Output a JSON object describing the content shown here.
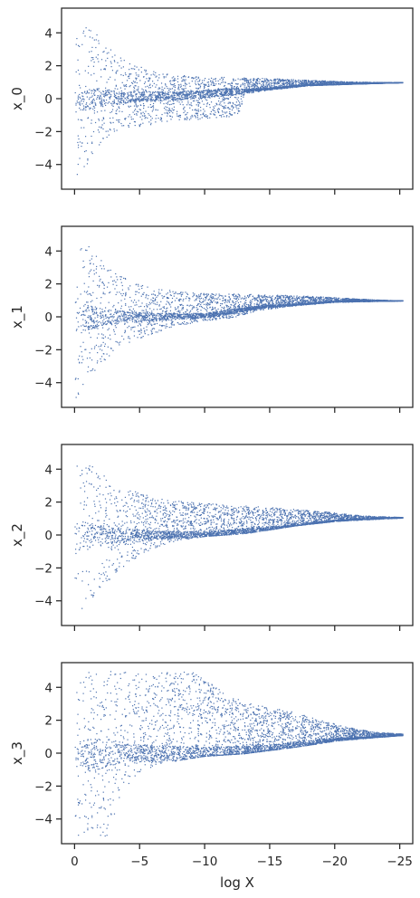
{
  "chart_data": {
    "type": "scatter",
    "panels_share_x": true,
    "marker_color": "#4c72b0",
    "marker": "tiny point",
    "xlabel": "log X",
    "x_axis_inverted": true,
    "xlim": [
      1,
      -26
    ],
    "xticks": [
      0,
      -5,
      -10,
      -15,
      -20,
      -25
    ],
    "xtick_labels": [
      "0",
      "−5",
      "−10",
      "−15",
      "−20",
      "−25"
    ],
    "ylim": [
      -5.5,
      5.5
    ],
    "yticks": [
      4,
      2,
      0,
      -2,
      -4
    ],
    "ytick_labels": [
      "4",
      "2",
      "0",
      "−2",
      "−4"
    ],
    "grid": false,
    "panels": [
      {
        "ylabel": "x_0",
        "x_range": [
          0,
          -25
        ],
        "upper_envelope": [
          [
            0,
            5.0
          ],
          [
            -1,
            4.6
          ],
          [
            -2,
            3.6
          ],
          [
            -3,
            2.8
          ],
          [
            -4,
            2.3
          ],
          [
            -6,
            1.7
          ],
          [
            -8,
            1.45
          ],
          [
            -10,
            1.35
          ],
          [
            -13,
            1.3
          ],
          [
            -15,
            1.25
          ],
          [
            -18,
            1.15
          ],
          [
            -21,
            1.05
          ],
          [
            -25,
            1.0
          ]
        ],
        "lower_envelope": [
          [
            0,
            -5.0
          ],
          [
            -1,
            -4.0
          ],
          [
            -2,
            -2.6
          ],
          [
            -3,
            -2.0
          ],
          [
            -4,
            -1.75
          ],
          [
            -6,
            -1.55
          ],
          [
            -8,
            -1.35
          ],
          [
            -10,
            -1.2
          ],
          [
            -12,
            -1.05
          ],
          [
            -12.7,
            -0.8
          ],
          [
            -13,
            0.3
          ],
          [
            -15,
            0.55
          ],
          [
            -18,
            0.8
          ],
          [
            -21,
            0.9
          ],
          [
            -25,
            1.0
          ]
        ],
        "dense_curve": [
          [
            0,
            0
          ],
          [
            -3,
            0.1
          ],
          [
            -8,
            0.2
          ],
          [
            -13,
            0.5
          ],
          [
            -18,
            0.85
          ],
          [
            -25,
            1.0
          ]
        ]
      },
      {
        "ylabel": "x_1",
        "x_range": [
          0,
          -25
        ],
        "upper_envelope": [
          [
            0,
            5.0
          ],
          [
            -1,
            4.4
          ],
          [
            -2,
            3.5
          ],
          [
            -3,
            2.8
          ],
          [
            -4,
            2.3
          ],
          [
            -6,
            1.8
          ],
          [
            -8,
            1.55
          ],
          [
            -10,
            1.45
          ],
          [
            -13,
            1.4
          ],
          [
            -16,
            1.35
          ],
          [
            -19,
            1.25
          ],
          [
            -22,
            1.1
          ],
          [
            -25,
            1.0
          ]
        ],
        "lower_envelope": [
          [
            0,
            -5.0
          ],
          [
            -1,
            -3.9
          ],
          [
            -2,
            -2.8
          ],
          [
            -3,
            -2.1
          ],
          [
            -4,
            -1.6
          ],
          [
            -6,
            -1.0
          ],
          [
            -8,
            -0.5
          ],
          [
            -10,
            -0.2
          ],
          [
            -12,
            -0.05
          ],
          [
            -13,
            0.15
          ],
          [
            -14,
            0.4
          ],
          [
            -17,
            0.7
          ],
          [
            -20,
            0.9
          ],
          [
            -25,
            1.0
          ]
        ],
        "dense_curve": [
          [
            0,
            0
          ],
          [
            -5,
            0
          ],
          [
            -10,
            0.1
          ],
          [
            -14,
            0.6
          ],
          [
            -20,
            0.95
          ],
          [
            -25,
            1.0
          ]
        ]
      },
      {
        "ylabel": "x_2",
        "x_range": [
          0,
          -25
        ],
        "upper_envelope": [
          [
            0,
            5.0
          ],
          [
            -1,
            4.5
          ],
          [
            -2,
            3.8
          ],
          [
            -3,
            3.2
          ],
          [
            -4,
            2.8
          ],
          [
            -6,
            2.35
          ],
          [
            -8,
            2.1
          ],
          [
            -10,
            1.95
          ],
          [
            -13,
            1.8
          ],
          [
            -16,
            1.65
          ],
          [
            -19,
            1.45
          ],
          [
            -22,
            1.2
          ],
          [
            -25,
            1.1
          ]
        ],
        "lower_envelope": [
          [
            0,
            -5.0
          ],
          [
            -1,
            -4.2
          ],
          [
            -2,
            -3.2
          ],
          [
            -3,
            -2.4
          ],
          [
            -4,
            -1.7
          ],
          [
            -5,
            -1.2
          ],
          [
            -6,
            -0.8
          ],
          [
            -8,
            -0.3
          ],
          [
            -10,
            -0.05
          ],
          [
            -13,
            0.1
          ],
          [
            -15,
            0.35
          ],
          [
            -17,
            0.6
          ],
          [
            -20,
            0.85
          ],
          [
            -25,
            1.05
          ]
        ],
        "dense_curve": [
          [
            0,
            0
          ],
          [
            -5,
            0
          ],
          [
            -10,
            0.05
          ],
          [
            -15,
            0.4
          ],
          [
            -20,
            0.9
          ],
          [
            -25,
            1.1
          ]
        ]
      },
      {
        "ylabel": "x_3",
        "x_range": [
          0,
          -25
        ],
        "upper_envelope": [
          [
            0,
            5.0
          ],
          [
            -3,
            5.0
          ],
          [
            -6,
            5.0
          ],
          [
            -9,
            5.0
          ],
          [
            -11,
            4.0
          ],
          [
            -13,
            3.1
          ],
          [
            -15,
            2.8
          ],
          [
            -17,
            2.5
          ],
          [
            -19,
            2.0
          ],
          [
            -21,
            1.6
          ],
          [
            -23,
            1.3
          ],
          [
            -25,
            1.2
          ]
        ],
        "lower_envelope": [
          [
            0,
            -5.0
          ],
          [
            -2.5,
            -5.0
          ],
          [
            -3,
            -3.8
          ],
          [
            -4,
            -2.0
          ],
          [
            -5,
            -1.2
          ],
          [
            -6,
            -0.8
          ],
          [
            -8,
            -0.4
          ],
          [
            -10,
            -0.15
          ],
          [
            -13,
            0.0
          ],
          [
            -15,
            0.2
          ],
          [
            -17,
            0.4
          ],
          [
            -20,
            0.75
          ],
          [
            -25,
            1.1
          ]
        ],
        "dense_curve": [
          [
            0,
            0
          ],
          [
            -5,
            0
          ],
          [
            -10,
            0.0
          ],
          [
            -15,
            0.3
          ],
          [
            -20,
            0.85
          ],
          [
            -25,
            1.1
          ]
        ]
      }
    ]
  }
}
